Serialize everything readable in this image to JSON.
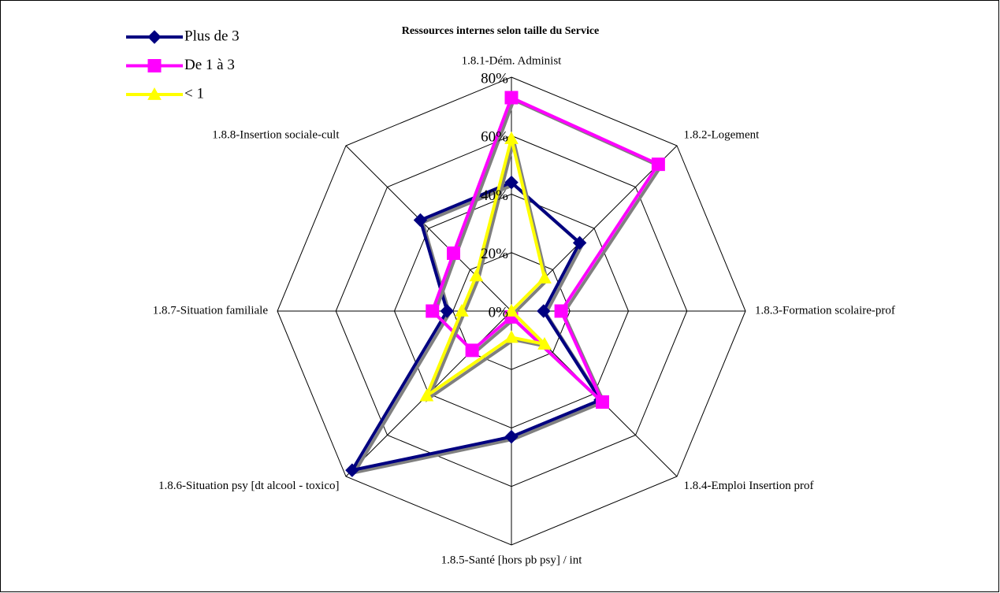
{
  "chart_data": {
    "type": "radar",
    "title": "Ressources internes selon taille du Service",
    "categories": [
      "1.8.1-Dém. Administ",
      "1.8.2-Logement",
      "1.8.3-Formation scolaire-prof",
      "1.8.4-Emploi Insertion prof",
      "1.8.5-Santé [hors pb psy] / int",
      "1.8.6-Situation psy [dt alcool - toxico]",
      "1.8.7-Situation familiale",
      "1.8.8-Insertion sociale-cult"
    ],
    "series": [
      {
        "name": "Plus de 3",
        "color": "#000080",
        "marker": "diamond",
        "values": [
          44,
          33,
          11,
          43,
          43,
          77,
          22,
          44
        ]
      },
      {
        "name": "De 1 à 3",
        "color": "#ff00ff",
        "marker": "square",
        "values": [
          73,
          71,
          17,
          44,
          2,
          19,
          27,
          28
        ]
      },
      {
        "name": "< 1",
        "color": "#ffff00",
        "marker": "triangle",
        "values": [
          59,
          16,
          0,
          16,
          9,
          41,
          17,
          17
        ]
      }
    ],
    "ylim": [
      0,
      80
    ],
    "yticks": [
      {
        "value": 0,
        "label": "0%"
      },
      {
        "value": 20,
        "label": "20%"
      },
      {
        "value": 40,
        "label": "40%"
      },
      {
        "value": 60,
        "label": "60%"
      },
      {
        "value": 80,
        "label": "80%"
      }
    ],
    "grid": true,
    "legend": "top-left"
  }
}
